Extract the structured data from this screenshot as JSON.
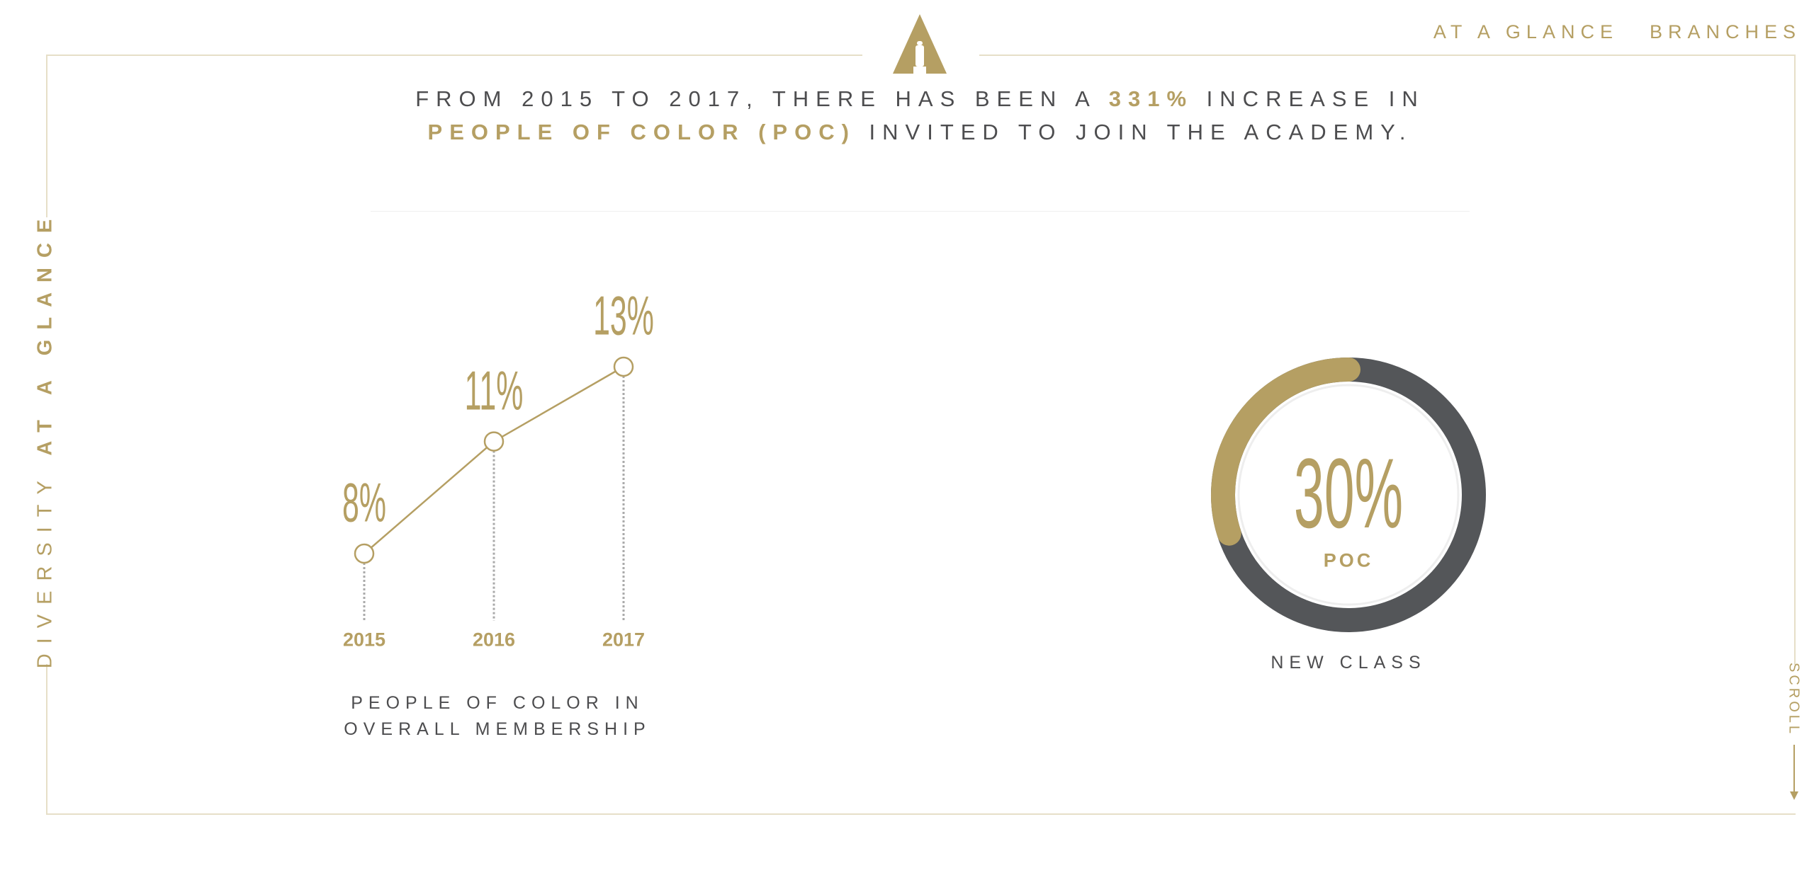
{
  "nav": {
    "items": [
      "AT A GLANCE",
      "BRANCHES"
    ]
  },
  "side_title": {
    "light": "DIVERSITY",
    "bold": "AT A GLANCE"
  },
  "headline": {
    "part1": "FROM 2015 TO 2017, THERE HAS BEEN A ",
    "highlight1": "331%",
    "part2": " INCREASE IN ",
    "highlight2": "PEOPLE OF COLOR (POC)",
    "part3": " INVITED TO JOIN THE ACADEMY."
  },
  "scroll_label": "SCROLL",
  "colors": {
    "gold": "#b59f63",
    "dark_gray": "#545659",
    "text": "#4d4d4f"
  },
  "chart_data": [
    {
      "type": "line",
      "categories": [
        "2015",
        "2016",
        "2017"
      ],
      "values": [
        8,
        11,
        13
      ],
      "data_labels": [
        "8%",
        "11%",
        "13%"
      ],
      "caption_lines": [
        "PEOPLE OF COLOR IN",
        "OVERALL MEMBERSHIP"
      ],
      "grid": false
    },
    {
      "type": "pie",
      "style": "donut",
      "value": 30,
      "center_label": "30%",
      "center_sublabel": "POC",
      "caption": "NEW CLASS"
    }
  ]
}
